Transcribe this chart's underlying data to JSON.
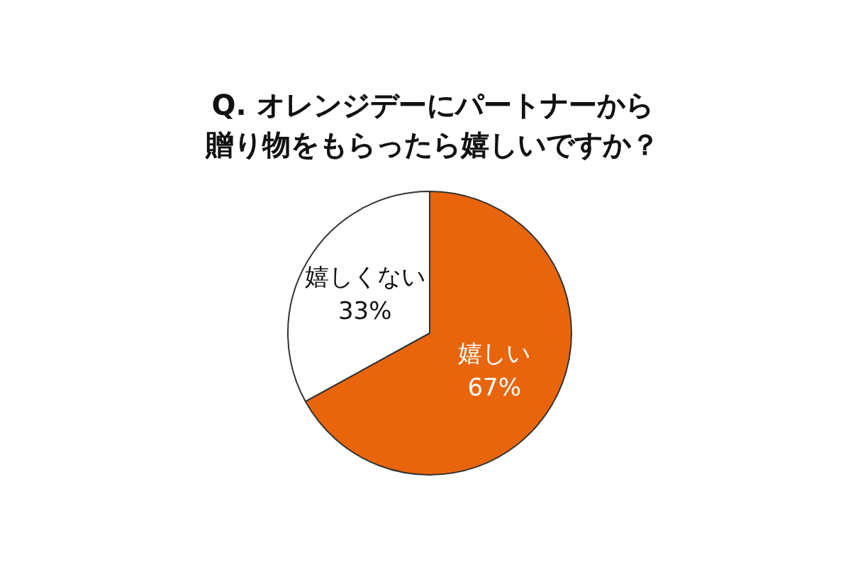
{
  "chart_data": {
    "type": "pie",
    "title": "Q. オレンジデーにパートナーから贈り物をもらったら嬉しいですか？",
    "categories": [
      "嬉しい",
      "嬉しくない"
    ],
    "values": [
      67,
      33
    ],
    "colors": [
      "#e8650c",
      "#ffffff"
    ],
    "value_labels": [
      "67%",
      "33%"
    ],
    "legend": false
  }
}
